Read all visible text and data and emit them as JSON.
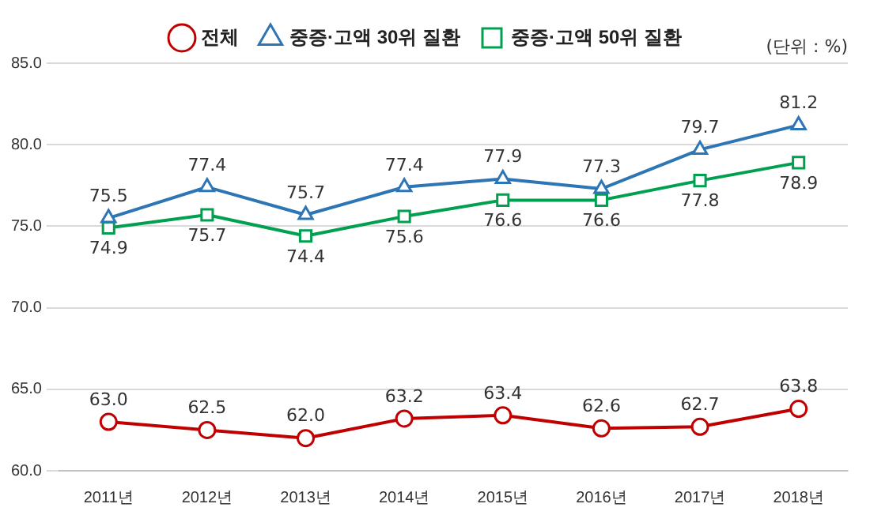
{
  "chart_data": {
    "type": "line",
    "categories": [
      "2011년",
      "2012년",
      "2013년",
      "2014년",
      "2015년",
      "2016년",
      "2017년",
      "2018년"
    ],
    "series": [
      {
        "name": "전체",
        "color": "#c00000",
        "marker": "circle",
        "values": [
          63.0,
          62.5,
          62.0,
          63.2,
          63.4,
          62.6,
          62.7,
          63.8
        ],
        "value_labels": [
          "63.0",
          "62.5",
          "62.0",
          "63.2",
          "63.4",
          "62.6",
          "62.7",
          "63.8"
        ]
      },
      {
        "name": "중증·고액 30위 질환",
        "color": "#2e75b6",
        "marker": "triangle",
        "values": [
          75.5,
          77.4,
          75.7,
          77.4,
          77.9,
          77.3,
          79.7,
          81.2
        ],
        "value_labels": [
          "75.5",
          "77.4",
          "75.7",
          "77.4",
          "77.9",
          "77.3",
          "79.7",
          "81.2"
        ]
      },
      {
        "name": "중증·고액 50위 질환",
        "color": "#00a050",
        "marker": "square",
        "values": [
          74.9,
          75.7,
          74.4,
          75.6,
          76.6,
          76.6,
          77.8,
          78.9
        ],
        "value_labels": [
          "74.9",
          "75.7",
          "74.4",
          "75.6",
          "76.6",
          "76.6",
          "77.8",
          "78.9"
        ]
      }
    ],
    "ylim": [
      60,
      85
    ],
    "yticks": [
      {
        "value": 60,
        "label": "60.0"
      },
      {
        "value": 65,
        "label": "65.0"
      },
      {
        "value": 70,
        "label": "70.0"
      },
      {
        "value": 75,
        "label": "75.0"
      },
      {
        "value": 80,
        "label": "80.0"
      },
      {
        "value": 85,
        "label": "85.0"
      }
    ],
    "grid": "y",
    "legend": "top",
    "line_style": "solid",
    "annotations": [
      "(단위 : %)"
    ]
  }
}
